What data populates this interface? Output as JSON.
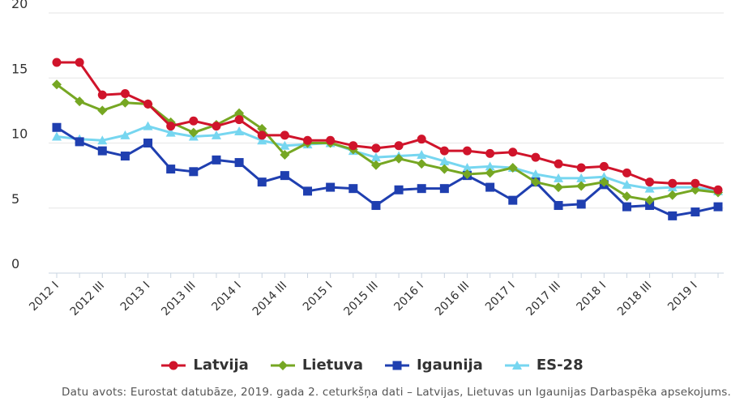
{
  "chart_data": {
    "type": "line",
    "title": "",
    "xlabel": "",
    "ylabel": "",
    "ylim": [
      0,
      20
    ],
    "yticks": [
      0,
      5,
      10,
      15,
      20
    ],
    "grid": true,
    "legend_position": "bottom-center",
    "categories": [
      "2012 I",
      "2012 II",
      "2012 III",
      "2012 IV",
      "2013 I",
      "2013 II",
      "2013 III",
      "2013 IV",
      "2014 I",
      "2014 II",
      "2014 III",
      "2014 IV",
      "2015 I",
      "2015 II",
      "2015 III",
      "2015 IV",
      "2016 I",
      "2016 II",
      "2016 III",
      "2016 IV",
      "2017 I",
      "2017 II",
      "2017 III",
      "2017 IV",
      "2018 I",
      "2018 II",
      "2018 III",
      "2018 IV",
      "2019 I",
      "2019 II"
    ],
    "x_tick_labels": [
      "2012 I",
      "2012 III",
      "2013 I",
      "2013 III",
      "2014 I",
      "2014 III",
      "2015 I",
      "2015 III",
      "2016 I",
      "2016 III",
      "2017 I",
      "2017 III",
      "2018 I",
      "2018 III",
      "2019 I"
    ],
    "series": [
      {
        "name": "Latvija",
        "color": "#d0142b",
        "marker": "circle",
        "values": [
          16.2,
          16.2,
          13.7,
          13.8,
          13.0,
          11.3,
          11.7,
          11.3,
          11.8,
          10.6,
          10.6,
          10.2,
          10.2,
          9.8,
          9.6,
          9.8,
          10.3,
          9.4,
          9.4,
          9.2,
          9.3,
          8.9,
          8.4,
          8.1,
          8.2,
          7.7,
          7.0,
          6.9,
          6.9,
          6.4
        ]
      },
      {
        "name": "Lietuva",
        "color": "#76a723",
        "marker": "diamond",
        "values": [
          14.5,
          13.2,
          12.5,
          13.1,
          13.0,
          11.6,
          10.8,
          11.4,
          12.3,
          11.1,
          9.1,
          10.0,
          10.0,
          9.5,
          8.3,
          8.8,
          8.4,
          8.0,
          7.6,
          7.7,
          8.1,
          7.0,
          6.6,
          6.7,
          7.0,
          5.9,
          5.6,
          6.0,
          6.4,
          6.2
        ]
      },
      {
        "name": "Igaunija",
        "color": "#1f3fb0",
        "marker": "square",
        "values": [
          11.2,
          10.1,
          9.4,
          9.0,
          10.0,
          8.0,
          7.8,
          8.7,
          8.5,
          7.0,
          7.5,
          6.3,
          6.6,
          6.5,
          5.2,
          6.4,
          6.5,
          6.5,
          7.5,
          6.6,
          5.6,
          7.0,
          5.2,
          5.3,
          6.8,
          5.1,
          5.2,
          4.4,
          4.7,
          5.1
        ]
      },
      {
        "name": "ES-28",
        "color": "#76d6f0",
        "marker": "triangle",
        "values": [
          10.5,
          10.3,
          10.2,
          10.6,
          11.3,
          10.8,
          10.5,
          10.6,
          10.9,
          10.2,
          9.8,
          9.9,
          10.0,
          9.4,
          8.9,
          9.0,
          9.1,
          8.6,
          8.1,
          8.2,
          8.1,
          7.6,
          7.3,
          7.3,
          7.4,
          6.8,
          6.5,
          6.6,
          6.6,
          6.3
        ]
      }
    ],
    "source": "Datu avots: Eurostat datubāze, 2019. gada 2. ceturkšņa dati – Latvijas, Lietuvas un Igaunijas Darbaspēka apsekojums."
  }
}
